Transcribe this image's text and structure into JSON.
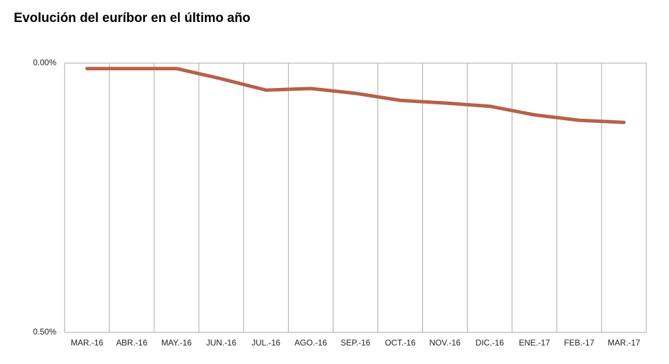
{
  "chart_data": {
    "type": "line",
    "title": "Evolución del euríbor en el último año",
    "categories": [
      "MAR.-16",
      "ABR.-16",
      "MAY.-16",
      "JUN.-16",
      "JUL.-16",
      "AGO.-16",
      "SEP.-16",
      "OCT.-16",
      "NOV.-16",
      "DIC.-16",
      "ENE.-17",
      "FEB.-17",
      "MAR.-17"
    ],
    "series": [
      {
        "color": "#b5614a",
        "values": [
          0.01,
          0.01,
          0.01,
          0.029,
          0.05,
          0.047,
          0.056,
          0.069,
          0.074,
          0.08,
          0.096,
          0.106,
          0.11
        ]
      }
    ],
    "ylim": [
      0,
      0.5
    ],
    "y_inverted": true,
    "yticks": [
      {
        "value": 0,
        "label": "0.00%"
      },
      {
        "value": 0.5,
        "label": "0.50%"
      }
    ],
    "grid": true
  }
}
